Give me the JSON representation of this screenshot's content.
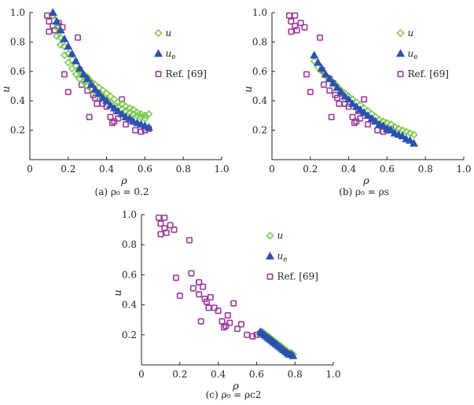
{
  "chart_data": [
    {
      "type": "scatter",
      "panel": "a",
      "caption": "(a) ρ₀ = 0.2",
      "xlabel": "ρ",
      "ylabel": "u",
      "xlim": [
        0,
        1
      ],
      "ylim": [
        0,
        1
      ],
      "xticks": [
        "0",
        "0.2",
        "0.4",
        "0.6",
        "0.8",
        "1.0"
      ],
      "yticks": [
        "0.2",
        "0.4",
        "0.6",
        "0.8",
        "1.0"
      ],
      "legend_position": "right",
      "series": [
        {
          "name": "u",
          "marker": "diamond",
          "color": "#7ccc4c",
          "x": [
            0.12,
            0.14,
            0.16,
            0.18,
            0.2,
            0.22,
            0.24,
            0.26,
            0.28,
            0.3,
            0.32,
            0.34,
            0.36,
            0.38,
            0.4,
            0.42,
            0.44,
            0.46,
            0.48,
            0.5,
            0.52,
            0.54,
            0.56,
            0.58,
            0.6,
            0.62,
            0.14,
            0.16,
            0.18,
            0.2,
            0.22,
            0.24,
            0.26,
            0.28,
            0.3,
            0.32,
            0.34,
            0.36,
            0.38,
            0.4,
            0.42,
            0.44,
            0.46,
            0.48,
            0.5,
            0.52,
            0.54,
            0.56,
            0.58,
            0.6
          ],
          "y": [
            0.98,
            0.9,
            0.83,
            0.77,
            0.72,
            0.68,
            0.64,
            0.61,
            0.58,
            0.56,
            0.53,
            0.51,
            0.49,
            0.47,
            0.45,
            0.43,
            0.41,
            0.39,
            0.38,
            0.36,
            0.35,
            0.34,
            0.32,
            0.31,
            0.3,
            0.31,
            0.84,
            0.78,
            0.71,
            0.66,
            0.62,
            0.58,
            0.55,
            0.53,
            0.5,
            0.48,
            0.46,
            0.44,
            0.42,
            0.4,
            0.39,
            0.37,
            0.36,
            0.34,
            0.33,
            0.32,
            0.31,
            0.3,
            0.29,
            0.28
          ]
        },
        {
          "name": "u_e",
          "marker": "triangle",
          "color": "#2a52b0",
          "x": [
            0.12,
            0.14,
            0.16,
            0.18,
            0.2,
            0.22,
            0.24,
            0.26,
            0.28,
            0.3,
            0.32,
            0.34,
            0.36,
            0.38,
            0.4,
            0.42,
            0.44,
            0.46,
            0.48,
            0.5,
            0.52,
            0.54,
            0.56,
            0.58,
            0.6,
            0.62
          ],
          "y": [
            1.0,
            0.94,
            0.88,
            0.82,
            0.77,
            0.72,
            0.67,
            0.62,
            0.58,
            0.55,
            0.51,
            0.48,
            0.45,
            0.42,
            0.4,
            0.37,
            0.35,
            0.33,
            0.31,
            0.29,
            0.28,
            0.26,
            0.25,
            0.24,
            0.23,
            0.22
          ]
        },
        {
          "name": "Ref. [69]",
          "marker": "square",
          "color": "#9c3a9c",
          "x": [
            0.09,
            0.1,
            0.1,
            0.12,
            0.12,
            0.13,
            0.15,
            0.17,
            0.18,
            0.2,
            0.25,
            0.27,
            0.3,
            0.3,
            0.31,
            0.32,
            0.33,
            0.34,
            0.35,
            0.36,
            0.38,
            0.4,
            0.42,
            0.43,
            0.44,
            0.45,
            0.46,
            0.48,
            0.5,
            0.52,
            0.55,
            0.58,
            0.6,
            0.62,
            0.3,
            0.26
          ],
          "y": [
            0.98,
            0.87,
            0.94,
            0.91,
            0.98,
            0.88,
            0.93,
            0.9,
            0.58,
            0.46,
            0.83,
            0.51,
            0.47,
            0.55,
            0.29,
            0.52,
            0.44,
            0.42,
            0.38,
            0.45,
            0.38,
            0.36,
            0.29,
            0.25,
            0.26,
            0.33,
            0.28,
            0.41,
            0.24,
            0.27,
            0.2,
            0.19,
            0.2,
            0.21,
            0.55,
            0.61
          ]
        }
      ]
    },
    {
      "type": "scatter",
      "panel": "b",
      "caption": "(b) ρ₀ = ρs",
      "xlabel": "ρ",
      "ylabel": "u",
      "xlim": [
        0,
        1
      ],
      "ylim": [
        0,
        1
      ],
      "xticks": [
        "0",
        "0.2",
        "0.4",
        "0.6",
        "0.8",
        "1.0"
      ],
      "yticks": [
        "0.2",
        "0.4",
        "0.6",
        "0.8",
        "1.0"
      ],
      "legend_position": "right",
      "series": [
        {
          "name": "u",
          "marker": "diamond",
          "color": "#7ccc4c",
          "x": [
            0.22,
            0.24,
            0.26,
            0.28,
            0.3,
            0.32,
            0.34,
            0.36,
            0.38,
            0.4,
            0.42,
            0.44,
            0.46,
            0.48,
            0.5,
            0.52,
            0.54,
            0.56,
            0.58,
            0.6,
            0.62,
            0.64,
            0.66,
            0.68,
            0.7,
            0.72,
            0.74
          ],
          "y": [
            0.67,
            0.63,
            0.6,
            0.57,
            0.55,
            0.52,
            0.5,
            0.47,
            0.45,
            0.43,
            0.41,
            0.39,
            0.37,
            0.35,
            0.33,
            0.31,
            0.29,
            0.27,
            0.26,
            0.25,
            0.24,
            0.22,
            0.21,
            0.2,
            0.19,
            0.18,
            0.17
          ]
        },
        {
          "name": "u_e",
          "marker": "triangle",
          "color": "#2a52b0",
          "x": [
            0.22,
            0.24,
            0.26,
            0.28,
            0.3,
            0.32,
            0.34,
            0.36,
            0.38,
            0.4,
            0.42,
            0.44,
            0.46,
            0.48,
            0.5,
            0.52,
            0.54,
            0.56,
            0.58,
            0.6,
            0.62,
            0.64,
            0.66,
            0.68,
            0.7,
            0.72,
            0.74
          ],
          "y": [
            0.71,
            0.66,
            0.62,
            0.58,
            0.55,
            0.52,
            0.49,
            0.46,
            0.43,
            0.41,
            0.38,
            0.36,
            0.34,
            0.32,
            0.3,
            0.28,
            0.26,
            0.24,
            0.23,
            0.21,
            0.2,
            0.18,
            0.17,
            0.16,
            0.14,
            0.13,
            0.11
          ]
        },
        {
          "name": "Ref. [69]",
          "marker": "square",
          "color": "#9c3a9c",
          "x": [
            0.09,
            0.1,
            0.1,
            0.12,
            0.12,
            0.13,
            0.15,
            0.17,
            0.18,
            0.2,
            0.25,
            0.27,
            0.3,
            0.3,
            0.31,
            0.32,
            0.33,
            0.34,
            0.35,
            0.36,
            0.38,
            0.4,
            0.42,
            0.43,
            0.44,
            0.45,
            0.46,
            0.48,
            0.5,
            0.52,
            0.55,
            0.58,
            0.6,
            0.62,
            0.3,
            0.26
          ],
          "y": [
            0.98,
            0.87,
            0.94,
            0.91,
            0.98,
            0.88,
            0.93,
            0.9,
            0.58,
            0.46,
            0.83,
            0.51,
            0.47,
            0.55,
            0.29,
            0.52,
            0.44,
            0.42,
            0.38,
            0.45,
            0.38,
            0.36,
            0.29,
            0.25,
            0.26,
            0.33,
            0.28,
            0.41,
            0.24,
            0.27,
            0.2,
            0.19,
            0.2,
            0.21,
            0.55,
            0.61
          ]
        }
      ]
    },
    {
      "type": "scatter",
      "panel": "c",
      "caption": "(c) ρ₀ = ρc2",
      "xlabel": "ρ",
      "ylabel": "u",
      "xlim": [
        0,
        1
      ],
      "ylim": [
        0,
        1
      ],
      "xticks": [
        "0",
        "0.2",
        "0.4",
        "0.6",
        "0.8",
        "1.0"
      ],
      "yticks": [
        "0.2",
        "0.4",
        "0.6",
        "0.8",
        "1.0"
      ],
      "legend_position": "right",
      "series": [
        {
          "name": "u",
          "marker": "diamond",
          "color": "#7ccc4c",
          "x": [
            0.63,
            0.64,
            0.65,
            0.66,
            0.67,
            0.68,
            0.69,
            0.7,
            0.71,
            0.72,
            0.73,
            0.74,
            0.75,
            0.76,
            0.77,
            0.78,
            0.79
          ],
          "y": [
            0.22,
            0.21,
            0.2,
            0.19,
            0.18,
            0.17,
            0.16,
            0.15,
            0.14,
            0.13,
            0.12,
            0.11,
            0.1,
            0.09,
            0.08,
            0.08,
            0.07
          ]
        },
        {
          "name": "u_e",
          "marker": "triangle",
          "color": "#2a52b0",
          "x": [
            0.62,
            0.63,
            0.64,
            0.65,
            0.66,
            0.67,
            0.68,
            0.69,
            0.7,
            0.71,
            0.72,
            0.73,
            0.74,
            0.75,
            0.76,
            0.77,
            0.78,
            0.79
          ],
          "y": [
            0.22,
            0.21,
            0.2,
            0.19,
            0.18,
            0.17,
            0.16,
            0.15,
            0.14,
            0.13,
            0.12,
            0.11,
            0.1,
            0.09,
            0.08,
            0.07,
            0.07,
            0.06
          ]
        },
        {
          "name": "Ref. [69]",
          "marker": "square",
          "color": "#9c3a9c",
          "x": [
            0.09,
            0.1,
            0.1,
            0.12,
            0.12,
            0.13,
            0.15,
            0.17,
            0.18,
            0.2,
            0.25,
            0.27,
            0.3,
            0.3,
            0.31,
            0.32,
            0.33,
            0.34,
            0.35,
            0.36,
            0.38,
            0.4,
            0.42,
            0.43,
            0.44,
            0.45,
            0.46,
            0.48,
            0.5,
            0.52,
            0.55,
            0.58,
            0.6,
            0.62,
            0.3,
            0.26
          ],
          "y": [
            0.98,
            0.87,
            0.94,
            0.91,
            0.98,
            0.88,
            0.93,
            0.9,
            0.58,
            0.46,
            0.83,
            0.51,
            0.47,
            0.55,
            0.29,
            0.52,
            0.44,
            0.42,
            0.38,
            0.45,
            0.38,
            0.36,
            0.29,
            0.25,
            0.26,
            0.33,
            0.28,
            0.41,
            0.24,
            0.27,
            0.2,
            0.19,
            0.2,
            0.21,
            0.55,
            0.61
          ]
        }
      ]
    }
  ]
}
